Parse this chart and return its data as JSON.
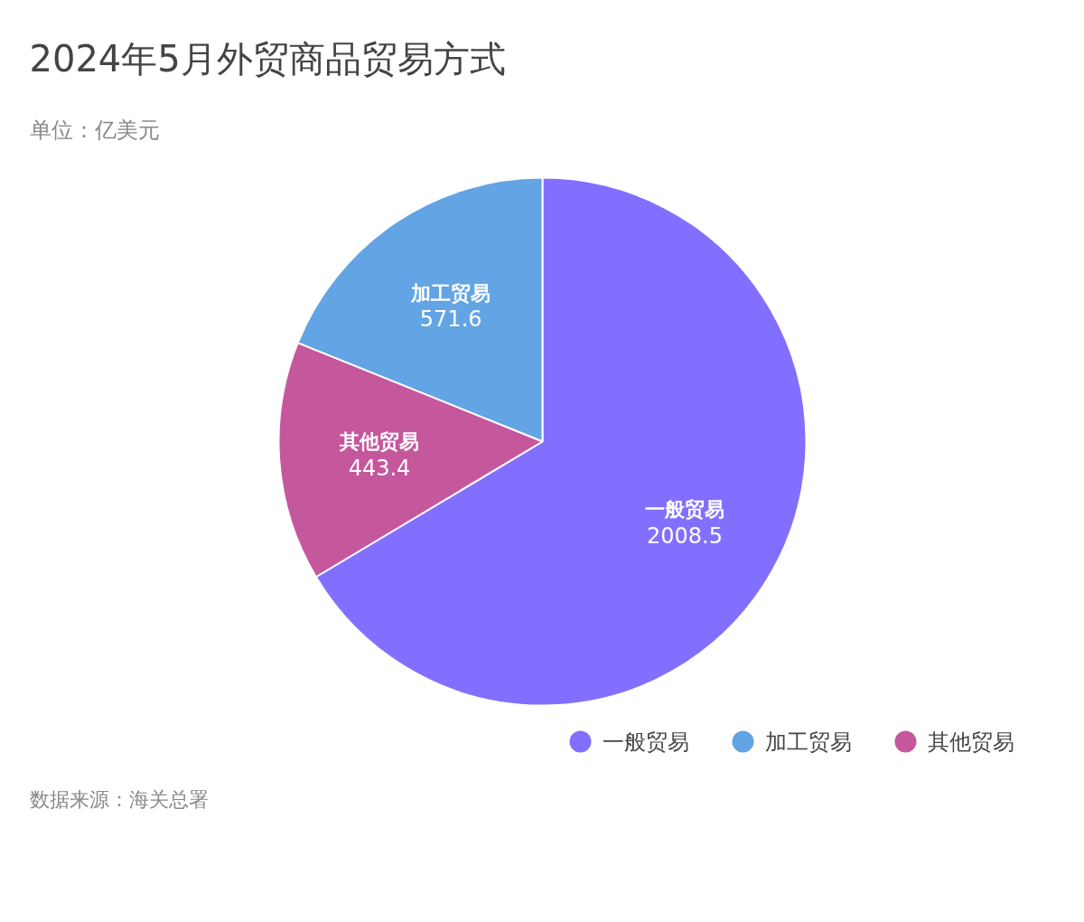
{
  "chart_data": {
    "type": "pie",
    "title": "2024年5月外贸商品贸易方式",
    "subtitle": "单位：亿美元",
    "categories": [
      "一般贸易",
      "加工贸易",
      "其他贸易"
    ],
    "values": [
      2008.5,
      571.6,
      443.4
    ],
    "colors": [
      "#836fff",
      "#63a4e4",
      "#c5579d"
    ],
    "data_labels": true,
    "legend": "bottom right",
    "annotations": [
      "数据来源：海关总署"
    ]
  }
}
